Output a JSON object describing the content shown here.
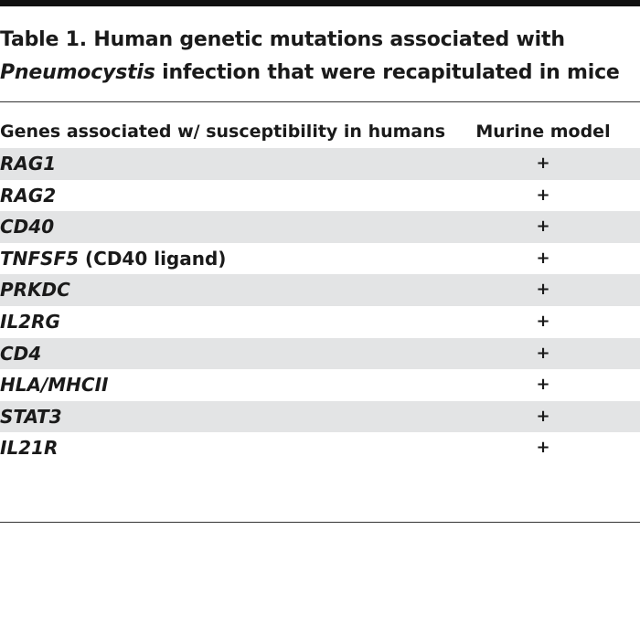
{
  "table": {
    "title_line1": "Table 1. Human genetic mutations associated with",
    "title_line2_italic": "Pneumocystis",
    "title_line2_rest": " infection that were recapitulated in mice",
    "headers": {
      "genes": "Genes associated w/ susceptibility in humans",
      "murine": "Murine model"
    },
    "rows": [
      {
        "gene": "RAG1",
        "suffix": "",
        "murine": "+"
      },
      {
        "gene": "RAG2",
        "suffix": "",
        "murine": "+"
      },
      {
        "gene": "CD40",
        "suffix": "",
        "murine": "+"
      },
      {
        "gene": "TNFSF5",
        "suffix": " (CD40 ligand)",
        "murine": "+"
      },
      {
        "gene": "PRKDC",
        "suffix": "",
        "murine": "+"
      },
      {
        "gene": "IL2RG",
        "suffix": "",
        "murine": "+"
      },
      {
        "gene": "CD4",
        "suffix": "",
        "murine": "+"
      },
      {
        "gene": "HLA/MHCII",
        "suffix": "",
        "murine": "+"
      },
      {
        "gene": "STAT3",
        "suffix": "",
        "murine": "+"
      },
      {
        "gene": "IL21R",
        "suffix": "",
        "murine": "+"
      }
    ]
  },
  "colors": {
    "shade": "#e3e4e5",
    "rule": "#111111"
  }
}
